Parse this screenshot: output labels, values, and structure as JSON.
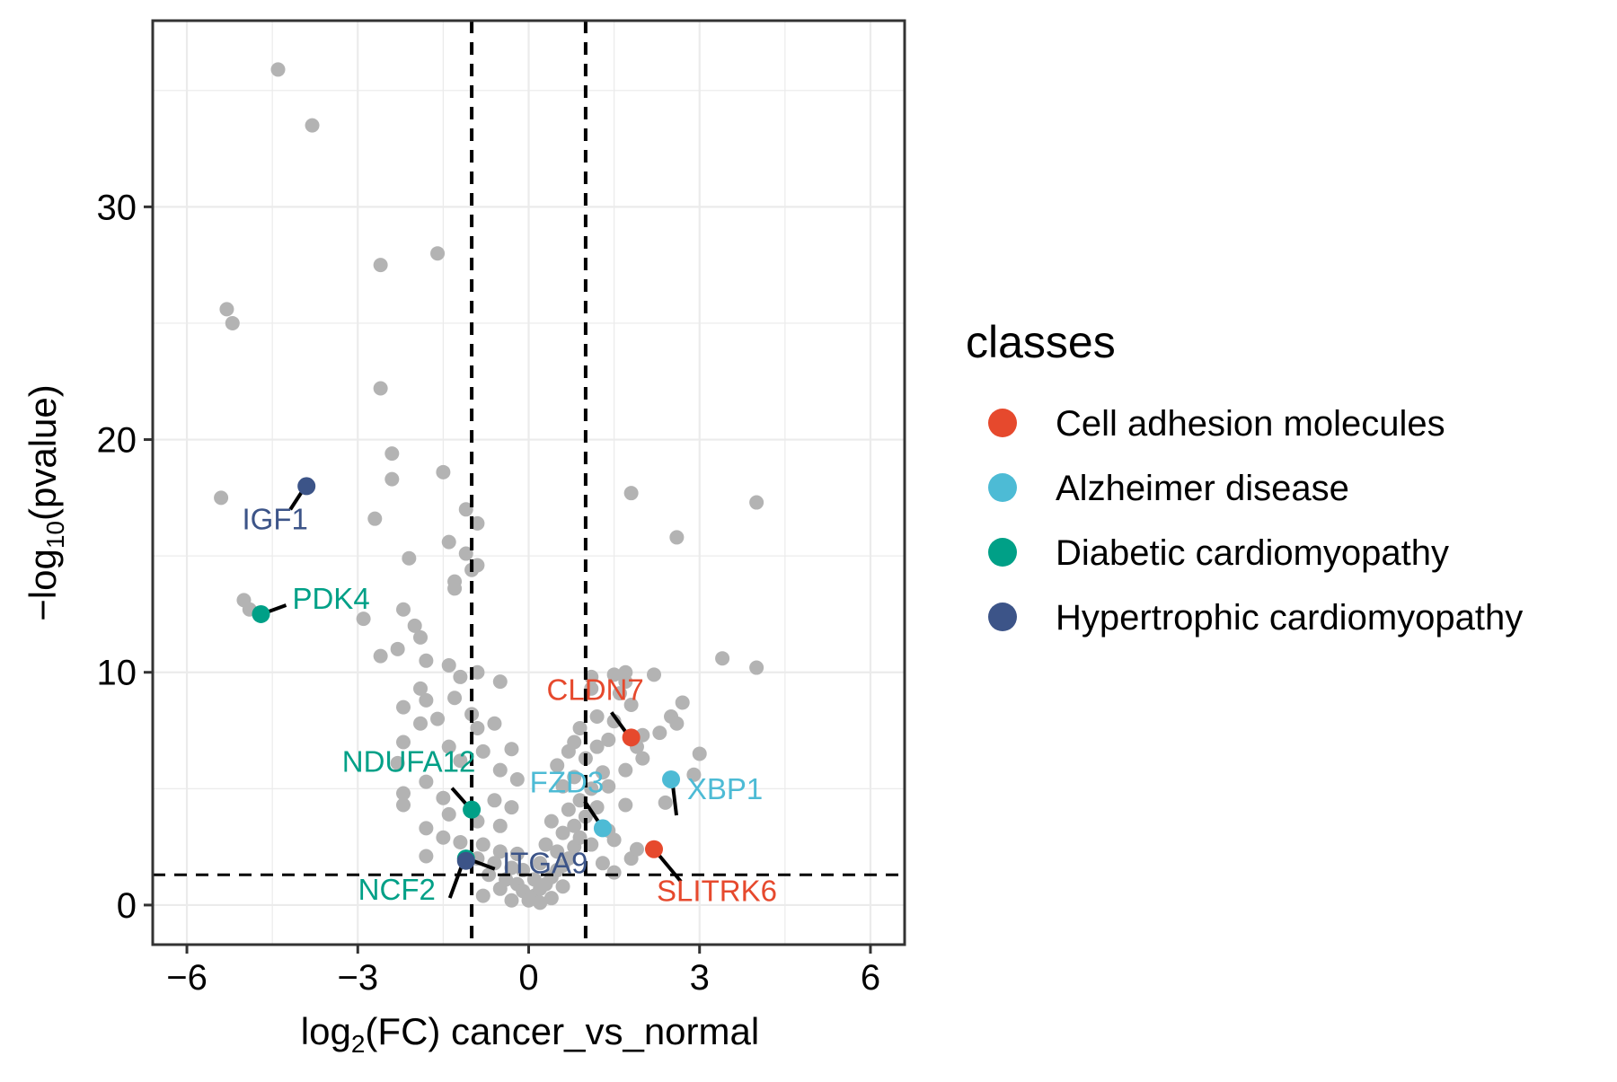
{
  "chart_data": {
    "type": "scatter",
    "title": "",
    "xlabel_prefix": "log",
    "xlabel_sub": "2",
    "xlabel_suffix": "(FC) cancer_vs_normal",
    "ylabel_prefix": "−log",
    "ylabel_sub": "10",
    "ylabel_suffix": "(pvalue)",
    "xlim": [
      -6.6,
      6.6
    ],
    "ylim": [
      -1.7,
      38
    ],
    "x_ticks": [
      -6,
      -3,
      0,
      3,
      6
    ],
    "x_tick_labels": [
      "−6",
      "−3",
      "0",
      "3",
      "6"
    ],
    "y_ticks": [
      0,
      10,
      20,
      30
    ],
    "y_tick_labels": [
      "0",
      "10",
      "20",
      "30"
    ],
    "grid": true,
    "thresholds": {
      "vertical": [
        -1,
        1
      ],
      "horizontal": 1.3
    },
    "background_points": [
      [
        -4.4,
        35.9
      ],
      [
        -3.8,
        33.5
      ],
      [
        -1.6,
        28.0
      ],
      [
        -2.6,
        27.5
      ],
      [
        -5.3,
        25.6
      ],
      [
        -5.2,
        25.0
      ],
      [
        -2.6,
        22.2
      ],
      [
        -2.4,
        19.4
      ],
      [
        -1.5,
        18.6
      ],
      [
        -2.4,
        18.3
      ],
      [
        -5.4,
        17.5
      ],
      [
        -1.1,
        17.0
      ],
      [
        -2.7,
        16.6
      ],
      [
        -0.9,
        16.4
      ],
      [
        -1.4,
        15.6
      ],
      [
        -1.1,
        15.1
      ],
      [
        -2.1,
        14.9
      ],
      [
        -0.9,
        14.6
      ],
      [
        -1.0,
        14.4
      ],
      [
        -1.3,
        13.9
      ],
      [
        -1.3,
        13.6
      ],
      [
        -5.0,
        13.1
      ],
      [
        -4.9,
        12.7
      ],
      [
        -2.2,
        12.7
      ],
      [
        -2.9,
        12.3
      ],
      [
        -2.0,
        12.0
      ],
      [
        -1.9,
        11.5
      ],
      [
        -2.3,
        11.0
      ],
      [
        -1.8,
        10.5
      ],
      [
        -2.6,
        10.7
      ],
      [
        -1.4,
        10.3
      ],
      [
        -0.9,
        10.0
      ],
      [
        -1.9,
        9.3
      ],
      [
        -1.2,
        9.8
      ],
      [
        -0.5,
        9.6
      ],
      [
        -1.3,
        8.9
      ],
      [
        -1.8,
        8.8
      ],
      [
        -2.2,
        8.5
      ],
      [
        -1.0,
        8.2
      ],
      [
        -1.6,
        8.0
      ],
      [
        -1.9,
        7.8
      ],
      [
        -0.9,
        7.6
      ],
      [
        -0.6,
        7.8
      ],
      [
        -2.2,
        7.0
      ],
      [
        -1.4,
        6.8
      ],
      [
        -0.3,
        6.7
      ],
      [
        -0.8,
        6.6
      ],
      [
        -2.3,
        6.1
      ],
      [
        -1.2,
        6.2
      ],
      [
        -0.5,
        5.8
      ],
      [
        -1.8,
        5.3
      ],
      [
        -0.2,
        5.4
      ],
      [
        -2.2,
        4.8
      ],
      [
        -1.5,
        4.6
      ],
      [
        -0.6,
        4.5
      ],
      [
        -0.3,
        4.2
      ],
      [
        -2.2,
        4.3
      ],
      [
        -1.4,
        3.9
      ],
      [
        -0.9,
        3.6
      ],
      [
        -0.5,
        3.4
      ],
      [
        -1.8,
        3.3
      ],
      [
        -1.5,
        2.9
      ],
      [
        -1.2,
        2.7
      ],
      [
        -0.8,
        2.6
      ],
      [
        -0.5,
        2.3
      ],
      [
        -0.2,
        2.2
      ],
      [
        -1.8,
        2.1
      ],
      [
        -0.9,
        2.0
      ],
      [
        -0.6,
        1.8
      ],
      [
        -0.3,
        1.6
      ],
      [
        -0.1,
        1.5
      ],
      [
        -0.7,
        1.3
      ],
      [
        -0.4,
        1.1
      ],
      [
        -0.2,
        0.9
      ],
      [
        -0.5,
        0.7
      ],
      [
        -0.1,
        0.6
      ],
      [
        0.0,
        0.2
      ],
      [
        0.1,
        0.4
      ],
      [
        0.2,
        0.7
      ],
      [
        0.3,
        0.9
      ],
      [
        0.1,
        1.1
      ],
      [
        0.4,
        1.2
      ],
      [
        0.5,
        1.5
      ],
      [
        0.6,
        1.7
      ],
      [
        0.2,
        1.8
      ],
      [
        0.7,
        2.0
      ],
      [
        0.5,
        2.3
      ],
      [
        0.8,
        2.5
      ],
      [
        0.3,
        2.6
      ],
      [
        0.9,
        2.9
      ],
      [
        0.6,
        3.1
      ],
      [
        0.8,
        3.4
      ],
      [
        0.4,
        3.6
      ],
      [
        1.0,
        3.8
      ],
      [
        0.7,
        4.1
      ],
      [
        1.2,
        4.2
      ],
      [
        0.9,
        4.5
      ],
      [
        0.6,
        5.1
      ],
      [
        1.1,
        5.0
      ],
      [
        0.8,
        5.5
      ],
      [
        1.3,
        5.7
      ],
      [
        0.5,
        6.0
      ],
      [
        1.0,
        6.3
      ],
      [
        0.7,
        6.6
      ],
      [
        1.2,
        6.8
      ],
      [
        0.8,
        7.0
      ],
      [
        1.4,
        7.1
      ],
      [
        0.9,
        7.6
      ],
      [
        1.5,
        7.9
      ],
      [
        1.2,
        8.1
      ],
      [
        1.8,
        8.6
      ],
      [
        1.6,
        9.1
      ],
      [
        1.1,
        9.3
      ],
      [
        1.7,
        9.6
      ],
      [
        1.1,
        9.8
      ],
      [
        1.5,
        9.9
      ],
      [
        1.7,
        10.0
      ],
      [
        2.2,
        9.9
      ],
      [
        2.7,
        8.7
      ],
      [
        2.5,
        8.1
      ],
      [
        2.0,
        7.3
      ],
      [
        1.9,
        6.8
      ],
      [
        2.0,
        6.3
      ],
      [
        1.7,
        5.8
      ],
      [
        1.4,
        5.1
      ],
      [
        1.7,
        4.3
      ],
      [
        2.4,
        4.4
      ],
      [
        2.9,
        5.6
      ],
      [
        3.0,
        6.5
      ],
      [
        2.3,
        7.4
      ],
      [
        2.6,
        7.8
      ],
      [
        3.4,
        10.6
      ],
      [
        4.0,
        10.2
      ],
      [
        1.8,
        17.7
      ],
      [
        2.6,
        15.8
      ],
      [
        4.0,
        17.3
      ],
      [
        1.4,
        3.2
      ],
      [
        1.5,
        2.8
      ],
      [
        1.8,
        2.0
      ],
      [
        1.9,
        2.4
      ],
      [
        1.5,
        1.4
      ],
      [
        1.3,
        1.8
      ],
      [
        1.1,
        2.6
      ],
      [
        0.6,
        0.8
      ],
      [
        -0.8,
        0.4
      ],
      [
        0.4,
        0.3
      ],
      [
        -0.3,
        0.2
      ],
      [
        0.2,
        0.1
      ]
    ],
    "series": [
      {
        "name": "Cell adhesion molecules",
        "color": "#e6492d",
        "points": [
          {
            "label": "CLDN7",
            "x": 1.8,
            "y": 7.2
          },
          {
            "label": "SLITRK6",
            "x": 2.2,
            "y": 2.4
          }
        ]
      },
      {
        "name": "Alzheimer disease",
        "color": "#4dbbd5",
        "points": [
          {
            "label": "FZD3",
            "x": 1.3,
            "y": 3.3
          },
          {
            "label": "XBP1",
            "x": 2.5,
            "y": 5.4
          }
        ]
      },
      {
        "name": "Diabetic cardiomyopathy",
        "color": "#00a087",
        "points": [
          {
            "label": "PDK4",
            "x": -4.7,
            "y": 12.5
          },
          {
            "label": "NDUFA12",
            "x": -1.0,
            "y": 4.1
          },
          {
            "label": "NCF2",
            "x": -1.1,
            "y": 2.0
          }
        ]
      },
      {
        "name": "Hypertrophic cardiomyopathy",
        "color": "#3c5488",
        "points": [
          {
            "label": "IGF1",
            "x": -3.9,
            "y": 18.0
          },
          {
            "label": "ITGA9",
            "x": -1.1,
            "y": 1.9
          }
        ]
      }
    ],
    "legend": {
      "title": "classes",
      "position": "right",
      "items": [
        {
          "label": "Cell adhesion molecules",
          "color": "#e6492d"
        },
        {
          "label": "Alzheimer disease",
          "color": "#4dbbd5"
        },
        {
          "label": "Diabetic cardiomyopathy",
          "color": "#00a087"
        },
        {
          "label": "Hypertrophic cardiomyopathy",
          "color": "#3c5488"
        }
      ]
    }
  }
}
